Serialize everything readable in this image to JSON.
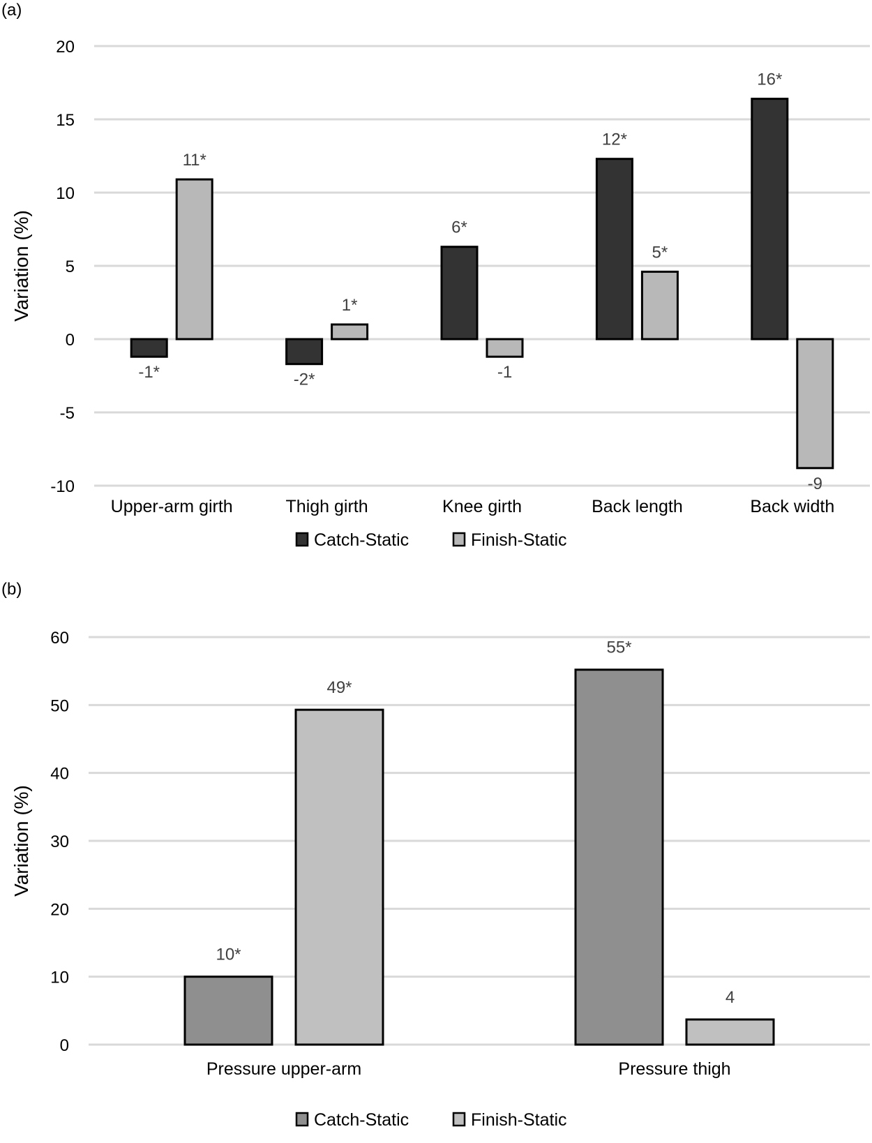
{
  "chart_data": [
    {
      "panel_label": "(a)",
      "type": "bar",
      "ylabel": "Variation (%)",
      "ylim": [
        -10,
        20
      ],
      "yticks": [
        20,
        15,
        10,
        5,
        0,
        -5,
        -10
      ],
      "grid": true,
      "legend_placement": "bottom",
      "categories": [
        "Upper-arm girth",
        "Thigh girth",
        "Knee girth",
        "Back length",
        "Back width"
      ],
      "series": [
        {
          "name": "Catch-Static",
          "color": "#333333",
          "values": [
            -1.2,
            -1.7,
            6.3,
            12.3,
            16.4
          ],
          "labels": [
            "-1*",
            "-2*",
            "6*",
            "12*",
            "16*"
          ]
        },
        {
          "name": "Finish-Static",
          "color": "#b8b8b8",
          "values": [
            10.9,
            1.0,
            -1.2,
            4.6,
            -8.8
          ],
          "labels": [
            "11*",
            "1*",
            "-1",
            "5*",
            "-9"
          ]
        }
      ]
    },
    {
      "panel_label": "(b)",
      "type": "bar",
      "ylabel": "Variation (%)",
      "ylim": [
        0,
        60
      ],
      "yticks": [
        60,
        50,
        40,
        30,
        20,
        10,
        0
      ],
      "grid": true,
      "legend_placement": "bottom",
      "categories": [
        "Pressure upper-arm",
        "Pressure  thigh"
      ],
      "series": [
        {
          "name": "Catch-Static",
          "color": "#8f8f8f",
          "values": [
            10,
            55.2
          ],
          "labels": [
            "10*",
            "55*"
          ]
        },
        {
          "name": "Finish-Static",
          "color": "#c0c0c0",
          "values": [
            49.3,
            3.7
          ],
          "labels": [
            "49*",
            "4"
          ]
        }
      ]
    }
  ]
}
